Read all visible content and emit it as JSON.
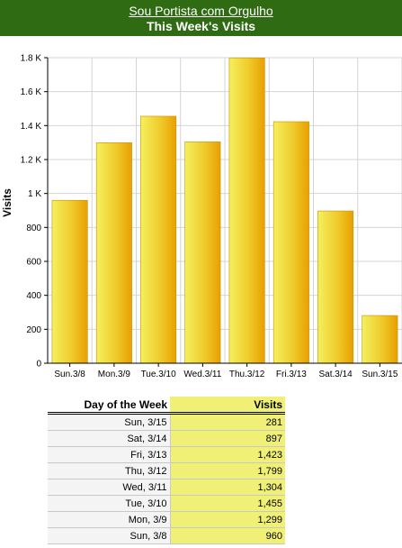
{
  "header": {
    "site_name": "Sou Portista com Orgulho",
    "chart_title": "This Week's Visits"
  },
  "colors": {
    "header_bg": "#2e6b12",
    "bar_light": "#f2ec58",
    "bar_dark": "#e8a000",
    "table_highlight": "#f0f076"
  },
  "chart_data": {
    "type": "bar",
    "title": "This Week's Visits",
    "xlabel": "",
    "ylabel": "Visits",
    "ylim": [
      0,
      1800
    ],
    "grid": true,
    "categories": [
      "Sun.3/8",
      "Mon.3/9",
      "Tue.3/10",
      "Wed.3/11",
      "Thu.3/12",
      "Fri.3/13",
      "Sat.3/14",
      "Sun.3/15"
    ],
    "values": [
      960,
      1299,
      1455,
      1304,
      1799,
      1423,
      897,
      281
    ],
    "y_ticks": [
      {
        "value": 0,
        "label": "0"
      },
      {
        "value": 200,
        "label": "200"
      },
      {
        "value": 400,
        "label": "400"
      },
      {
        "value": 600,
        "label": "600"
      },
      {
        "value": 800,
        "label": "800"
      },
      {
        "value": 1000,
        "label": "1 K"
      },
      {
        "value": 1200,
        "label": "1.2 K"
      },
      {
        "value": 1400,
        "label": "1.4 K"
      },
      {
        "value": 1600,
        "label": "1.6 K"
      },
      {
        "value": 1800,
        "label": "1.8 K"
      }
    ]
  },
  "table": {
    "headers": {
      "day": "Day of the Week",
      "visits": "Visits"
    },
    "rows": [
      {
        "day": "Sun, 3/15",
        "visits": "281"
      },
      {
        "day": "Sat, 3/14",
        "visits": "897"
      },
      {
        "day": "Fri, 3/13",
        "visits": "1,423"
      },
      {
        "day": "Thu, 3/12",
        "visits": "1,799"
      },
      {
        "day": "Wed, 3/11",
        "visits": "1,304"
      },
      {
        "day": "Tue, 3/10",
        "visits": "1,455"
      },
      {
        "day": "Mon, 3/9",
        "visits": "1,299"
      },
      {
        "day": "Sun, 3/8",
        "visits": "960"
      }
    ]
  }
}
